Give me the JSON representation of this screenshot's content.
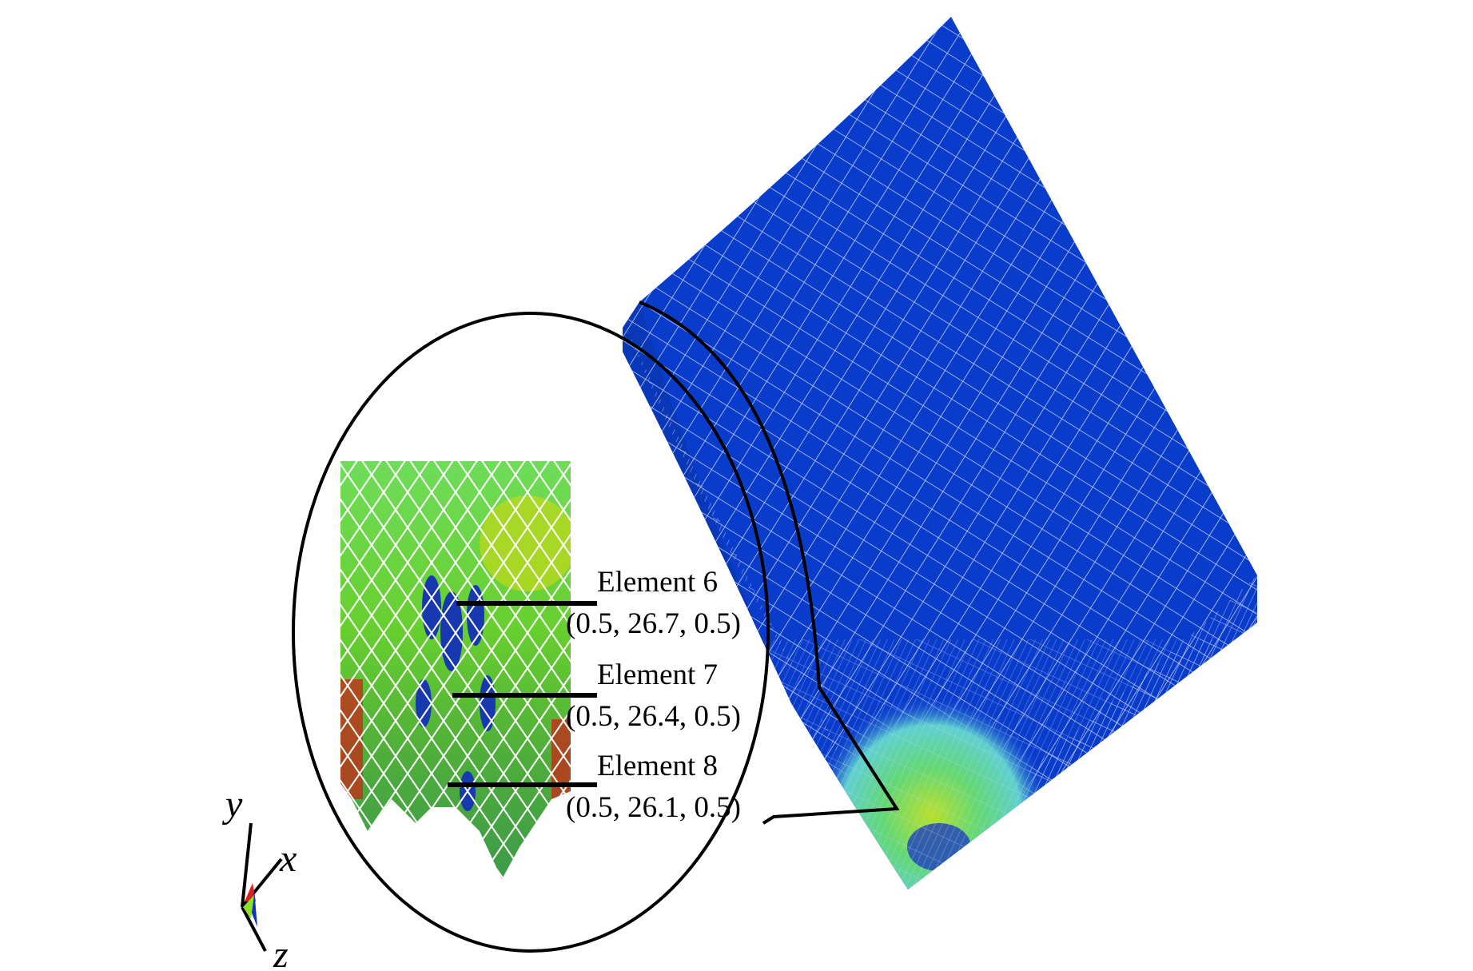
{
  "labels": [
    {
      "name": "Element 6",
      "coords": "(0.5, 26.7, 0.5)"
    },
    {
      "name": "Element 7",
      "coords": "(0.5, 26.4, 0.5)"
    },
    {
      "name": "Element 8",
      "coords": "(0.5, 26.1, 0.5)"
    }
  ],
  "axes": {
    "y": "y",
    "x": "x",
    "z": "z"
  },
  "colors": {
    "mesh_blue": "#0a3ccc",
    "mesh_green": "#5fd33a",
    "mesh_cyan": "#6ee6c8",
    "mesh_red": "#c0301a",
    "callout": "#000000"
  }
}
